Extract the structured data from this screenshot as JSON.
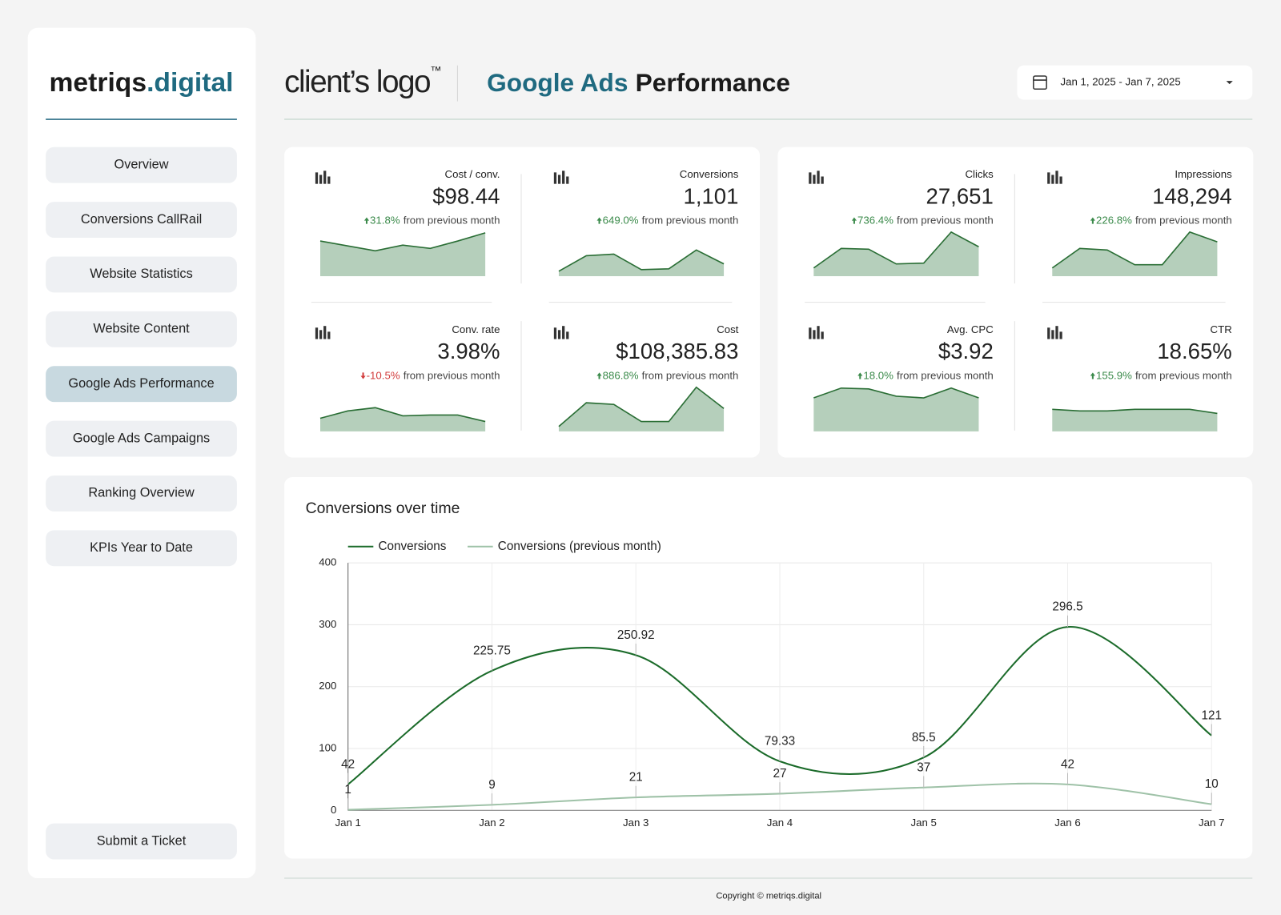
{
  "sidebar": {
    "logo": {
      "name": "metriqs",
      "suffix": ".digital"
    },
    "nav": [
      "Overview",
      "Conversions CallRail",
      "Website Statistics",
      "Website Content",
      "Google Ads Performance",
      "Google Ads Campaigns",
      "Ranking Overview",
      "KPIs Year to Date"
    ],
    "active": 4,
    "ticket": "Submit a Ticket"
  },
  "header": {
    "client_logo": "client’s logo",
    "trademark": "™",
    "title_brand": "Google Ads",
    "title_rest": "Performance",
    "date_range": "Jan 1, 2025 - Jan 7, 2025"
  },
  "kpi_cards": [
    [
      {
        "label": "Cost / conv.",
        "value": "$98.44",
        "change": "31.8%",
        "direction": "up",
        "note": "from previous month",
        "trend": [
          43,
          37,
          31,
          38,
          34,
          43,
          53
        ]
      },
      {
        "label": "Conversions",
        "value": "1,101",
        "change": "649.0%",
        "direction": "up",
        "note": "from previous month",
        "trend": [
          6,
          25,
          27,
          8,
          9,
          32,
          15
        ]
      },
      {
        "label": "Conv. rate",
        "value": "3.98%",
        "change": "-10.5%",
        "direction": "down",
        "note": "from previous month",
        "trend": [
          16,
          25,
          29,
          19,
          20,
          20,
          12
        ]
      },
      {
        "label": "Cost",
        "value": "$108,385.83",
        "change": "886.8%",
        "direction": "up",
        "note": "from previous month",
        "trend": [
          6,
          35,
          33,
          12,
          12,
          54,
          28
        ]
      }
    ],
    [
      {
        "label": "Clicks",
        "value": "27,651",
        "change": "736.4%",
        "direction": "up",
        "note": "from previous month",
        "trend": [
          10,
          34,
          33,
          15,
          16,
          54,
          36
        ]
      },
      {
        "label": "Impressions",
        "value": "148,294",
        "change": "226.8%",
        "direction": "up",
        "note": "from previous month",
        "trend": [
          10,
          34,
          32,
          14,
          14,
          54,
          42
        ]
      },
      {
        "label": "Avg. CPC",
        "value": "$3.92",
        "change": "18.0%",
        "direction": "up",
        "note": "from previous month",
        "trend": [
          41,
          53,
          52,
          43,
          41,
          53,
          41
        ]
      },
      {
        "label": "CTR",
        "value": "18.65%",
        "change": "155.9%",
        "direction": "up",
        "note": "from previous month",
        "trend": [
          27,
          25,
          25,
          27,
          27,
          27,
          22
        ]
      }
    ]
  ],
  "chart_data": {
    "type": "line",
    "title": "Conversions over time",
    "categories": [
      "Jan 1",
      "Jan 2",
      "Jan 3",
      "Jan 4",
      "Jan 5",
      "Jan 6",
      "Jan 7"
    ],
    "series": [
      {
        "name": "Conversions",
        "color": "#1b6b2a",
        "values": [
          42,
          225.75,
          250.92,
          79.33,
          85.5,
          296.5,
          121
        ]
      },
      {
        "name": "Conversions (previous month)",
        "color": "#9fc2a8",
        "values": [
          1,
          9,
          21,
          27,
          37,
          42,
          10
        ]
      }
    ],
    "ylim": [
      0,
      400
    ],
    "yticks": [
      0,
      100,
      200,
      300,
      400
    ],
    "grid": true,
    "smooth": true
  },
  "footer": "Copyright © metriqs.digital"
}
